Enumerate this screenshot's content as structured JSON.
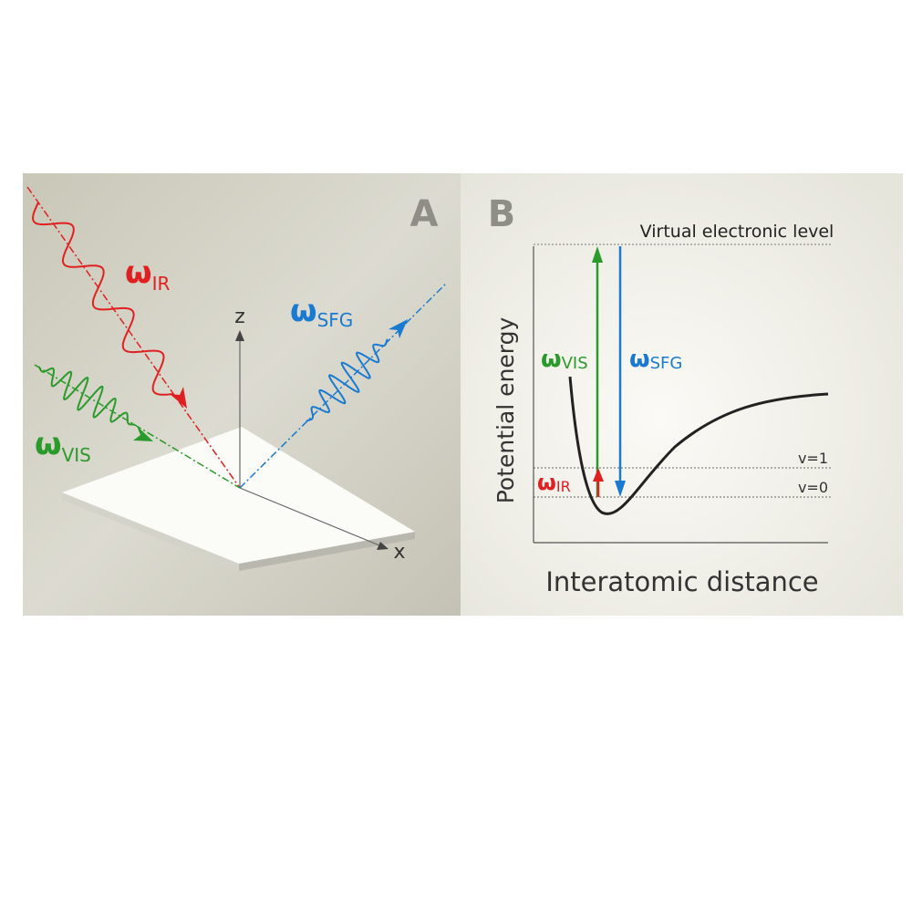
{
  "panel_a": {
    "label": "A",
    "beams": [
      {
        "symbol": "ω",
        "subscript": "IR"
      },
      {
        "symbol": "ω",
        "subscript": "VIS"
      },
      {
        "symbol": "ω",
        "subscript": "SFG"
      }
    ],
    "axes": {
      "z": "z",
      "x": "x"
    }
  },
  "panel_b": {
    "label": "B",
    "levels": {
      "virtual": "Virtual electronic level",
      "v1": "v=1",
      "v0": "v=0"
    },
    "transitions": [
      {
        "symbol": "ω",
        "subscript": "VIS"
      },
      {
        "symbol": "ω",
        "subscript": "SFG"
      },
      {
        "symbol": "ω",
        "subscript": "IR"
      }
    ],
    "y_axis_label": "Potential energy",
    "x_axis_label": "Interatomic distance"
  }
}
